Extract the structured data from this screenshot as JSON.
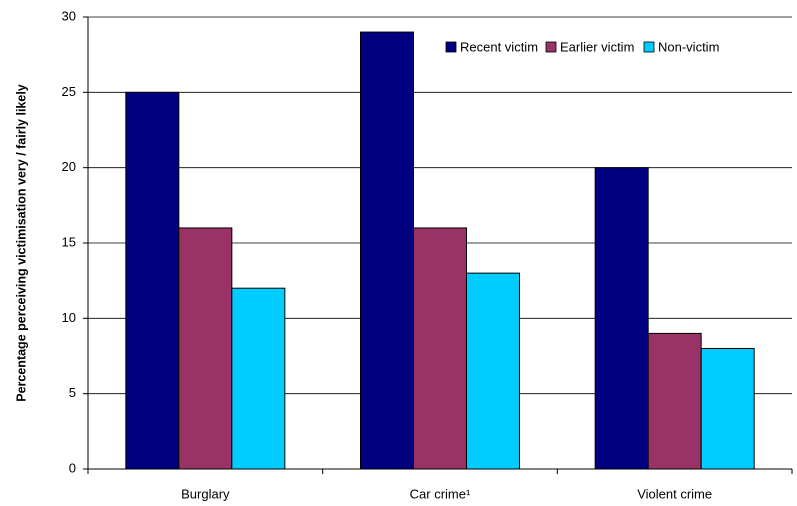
{
  "chart_data": {
    "type": "bar",
    "y_label": "Percentage perceiving victimisation very / fairly likely",
    "categories": [
      "Burglary",
      "Car crime¹",
      "Violent crime"
    ],
    "series": [
      {
        "name": "Recent victim",
        "color": "#000080",
        "values": [
          25,
          29,
          20
        ]
      },
      {
        "name": "Earlier victim",
        "color": "#993366",
        "values": [
          16,
          16,
          9
        ]
      },
      {
        "name": "Non-victim",
        "color": "#00ccff",
        "values": [
          12,
          13,
          8
        ]
      }
    ],
    "ylim": [
      0,
      30
    ],
    "yticks": [
      0,
      5,
      10,
      15,
      20,
      25,
      30
    ],
    "grid": true,
    "legend": "top-right"
  }
}
